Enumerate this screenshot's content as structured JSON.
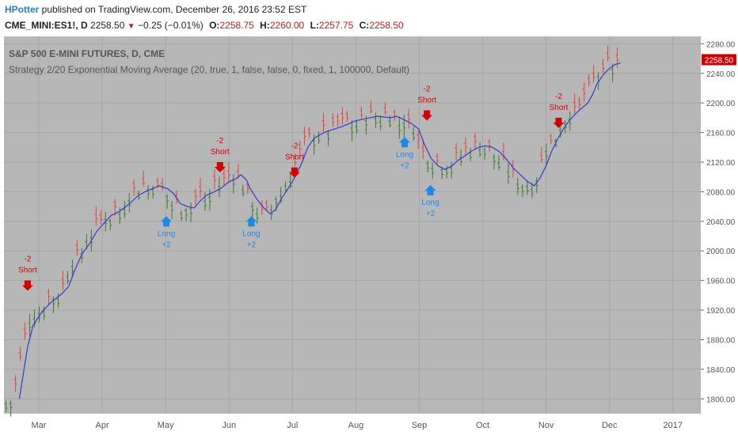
{
  "header": {
    "publisher": "HPotter",
    "published_text": " published on TradingView.com, December 26, 2016 23:52 EST",
    "symbol": "CME_MINI:ES1!, D",
    "last": "2258.50",
    "change": "−0.25 (−0.01%)",
    "open_label": "O:",
    "open": "2258.75",
    "high_label": "H:",
    "high": "2260.00",
    "low_label": "L:",
    "low": "2257.75",
    "close_label": "C:",
    "close": "2258.50",
    "down_icon": "triangle-down-icon"
  },
  "chart_data": {
    "type": "candlestick",
    "title": "S&P 500 E-MINI FUTURES, D, CME",
    "subtitle": "Strategy 2/20 Exponential Moving Average (20, true, 1, false, false, 0, fixed, 1, 100000, Default)",
    "ylim": [
      1780,
      2290
    ],
    "y_ticks": [
      "1800.00",
      "1840.00",
      "1880.00",
      "1920.00",
      "1960.00",
      "2000.00",
      "2040.00",
      "2080.00",
      "2120.00",
      "2160.00",
      "2200.00",
      "2240.00",
      "2280.00"
    ],
    "x_ticks": [
      "Mar",
      "Apr",
      "May",
      "Jun",
      "Jul",
      "Aug",
      "Sep",
      "Oct",
      "Nov",
      "Dec",
      "2017"
    ],
    "last_price_label": "2258.50",
    "colors": {
      "background": "#b7b7b7",
      "up_bar": "#3c7a2e",
      "down_bar": "#e8403c",
      "ema": "#3a37d4",
      "long_signal": "#1e88e5",
      "short_signal": "#d50000",
      "price_label_bg": "#cc0000"
    },
    "ema_points": [
      [
        2.2,
        1800
      ],
      [
        2.8,
        1835
      ],
      [
        3.4,
        1870
      ],
      [
        4.2,
        1900
      ],
      [
        5.5,
        1918
      ],
      [
        6.7,
        1930
      ],
      [
        7.5,
        1936
      ],
      [
        8.3,
        1942
      ],
      [
        9.3,
        1952
      ],
      [
        10.2,
        1975
      ],
      [
        11.2,
        1996
      ],
      [
        12.3,
        2010
      ],
      [
        13.3,
        2026
      ],
      [
        14.4,
        2038
      ],
      [
        15.4,
        2048
      ],
      [
        16.5,
        2053
      ],
      [
        17.5,
        2060
      ],
      [
        18.5,
        2068
      ],
      [
        19.3,
        2075
      ],
      [
        20.3,
        2080
      ],
      [
        21.3,
        2084
      ],
      [
        22.3,
        2088
      ],
      [
        23.5,
        2084
      ],
      [
        24.3,
        2078
      ],
      [
        25.3,
        2064
      ],
      [
        26.3,
        2060
      ],
      [
        27.3,
        2058
      ],
      [
        28.0,
        2066
      ],
      [
        29.0,
        2075
      ],
      [
        30.2,
        2080
      ],
      [
        31.2,
        2085
      ],
      [
        32.2,
        2093
      ],
      [
        33.2,
        2097
      ],
      [
        34.0,
        2103
      ],
      [
        34.8,
        2096
      ],
      [
        35.3,
        2085
      ],
      [
        36.3,
        2070
      ],
      [
        37.3,
        2058
      ],
      [
        38.2,
        2050
      ],
      [
        39.0,
        2056
      ],
      [
        39.9,
        2072
      ],
      [
        40.9,
        2086
      ],
      [
        41.9,
        2102
      ],
      [
        42.8,
        2120
      ],
      [
        43.6,
        2140
      ],
      [
        44.5,
        2152
      ],
      [
        45.5,
        2158
      ],
      [
        46.5,
        2162
      ],
      [
        47.5,
        2165
      ],
      [
        48.5,
        2168
      ],
      [
        49.5,
        2172
      ],
      [
        50.5,
        2176
      ],
      [
        51.5,
        2178
      ],
      [
        52.5,
        2180
      ],
      [
        53.5,
        2182
      ],
      [
        54.5,
        2181
      ],
      [
        55.5,
        2180
      ],
      [
        56.3,
        2182
      ],
      [
        57.3,
        2178
      ],
      [
        58.5,
        2172
      ],
      [
        59.5,
        2165
      ],
      [
        60.3,
        2145
      ],
      [
        61.3,
        2125
      ],
      [
        62.3,
        2115
      ],
      [
        63.3,
        2110
      ],
      [
        64.3,
        2115
      ],
      [
        65.1,
        2122
      ],
      [
        66.1,
        2128
      ],
      [
        67.1,
        2135
      ],
      [
        68.1,
        2140
      ],
      [
        69.1,
        2142
      ],
      [
        70.1,
        2140
      ],
      [
        71.1,
        2134
      ],
      [
        72.1,
        2124
      ],
      [
        73.1,
        2112
      ],
      [
        74.1,
        2103
      ],
      [
        75.1,
        2094
      ],
      [
        76.1,
        2088
      ],
      [
        76.9,
        2098
      ],
      [
        77.8,
        2115
      ],
      [
        78.6,
        2135
      ],
      [
        79.5,
        2152
      ],
      [
        80.3,
        2165
      ],
      [
        81.1,
        2176
      ],
      [
        81.9,
        2184
      ],
      [
        82.8,
        2192
      ],
      [
        83.8,
        2200
      ],
      [
        84.5,
        2212
      ],
      [
        85.1,
        2226
      ],
      [
        86.0,
        2238
      ],
      [
        86.8,
        2246
      ],
      [
        87.7,
        2252
      ],
      [
        88.5,
        2254
      ]
    ],
    "signals": [
      {
        "type": "short",
        "lines": [
          "-2",
          "Short"
        ],
        "x_pct": 3.4,
        "price": 1945
      },
      {
        "type": "long",
        "lines": [
          "Long",
          "+2"
        ],
        "x_pct": 23.3,
        "price": 2048
      },
      {
        "type": "short",
        "lines": [
          "-2",
          "Short"
        ],
        "x_pct": 31.0,
        "price": 2105
      },
      {
        "type": "long",
        "lines": [
          "Long",
          "+2"
        ],
        "x_pct": 35.5,
        "price": 2048
      },
      {
        "type": "short",
        "lines": [
          "-2",
          "Short"
        ],
        "x_pct": 41.7,
        "price": 2098
      },
      {
        "type": "long",
        "lines": [
          "Long",
          "+2"
        ],
        "x_pct": 57.5,
        "price": 2155
      },
      {
        "type": "short",
        "lines": [
          "-2",
          "Short"
        ],
        "x_pct": 60.7,
        "price": 2175
      },
      {
        "type": "long",
        "lines": [
          "Long",
          "+2"
        ],
        "x_pct": 61.2,
        "price": 2090
      },
      {
        "type": "short",
        "lines": [
          "-2",
          "Short"
        ],
        "x_pct": 79.6,
        "price": 2165
      }
    ]
  }
}
